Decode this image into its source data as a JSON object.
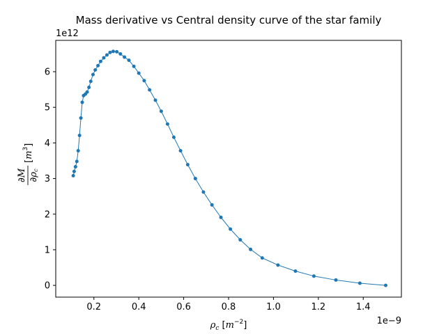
{
  "chart_data": {
    "type": "line",
    "title": "Mass derivative vs Central density curve of the star family",
    "xlabel": {
      "symbol": "ρ",
      "sub": "c",
      "unit_open": " [",
      "unit_base": "m",
      "unit_exp": "−2",
      "unit_close": "]"
    },
    "ylabel": {
      "partial": "∂",
      "numerator": "M",
      "den_symbol": "ρ",
      "den_sub": "c",
      "unit_open": " [",
      "unit_base": "m",
      "unit_exp": "3",
      "unit_close": "]"
    },
    "x_offset_text": "1e−9",
    "y_offset_text": "1e12",
    "x_scale": 1e-09,
    "y_scale": 1000000000000.0,
    "xlim": [
      0.03,
      1.57
    ],
    "ylim": [
      -0.33,
      6.88
    ],
    "x_ticks": [
      0.2,
      0.4,
      0.6,
      0.8,
      1.0,
      1.2,
      1.4
    ],
    "x_tick_labels": [
      "0.2",
      "0.4",
      "0.6",
      "0.8",
      "1.0",
      "1.2",
      "1.4"
    ],
    "y_ticks": [
      0,
      1,
      2,
      3,
      4,
      5,
      6
    ],
    "y_tick_labels": [
      "0",
      "1",
      "2",
      "3",
      "4",
      "5",
      "6"
    ],
    "grid": false,
    "series_color": "#1f77b4",
    "x": [
      0.108,
      0.112,
      0.118,
      0.124,
      0.13,
      0.136,
      0.142,
      0.148,
      0.154,
      0.162,
      0.17,
      0.178,
      0.186,
      0.196,
      0.206,
      0.218,
      0.23,
      0.244,
      0.258,
      0.272,
      0.286,
      0.302,
      0.318,
      0.336,
      0.356,
      0.378,
      0.4,
      0.424,
      0.448,
      0.474,
      0.5,
      0.528,
      0.556,
      0.586,
      0.618,
      0.652,
      0.688,
      0.726,
      0.766,
      0.808,
      0.852,
      0.898,
      0.95,
      1.02,
      1.098,
      1.18,
      1.278,
      1.385,
      1.5
    ],
    "y": [
      3.08,
      3.2,
      3.33,
      3.48,
      3.78,
      4.21,
      4.7,
      5.14,
      5.33,
      5.37,
      5.43,
      5.56,
      5.73,
      5.92,
      6.05,
      6.17,
      6.29,
      6.39,
      6.47,
      6.54,
      6.57,
      6.56,
      6.5,
      6.41,
      6.32,
      6.15,
      5.96,
      5.75,
      5.49,
      5.2,
      4.89,
      4.53,
      4.16,
      3.78,
      3.39,
      3.0,
      2.62,
      2.26,
      1.91,
      1.58,
      1.28,
      1.01,
      0.77,
      0.57,
      0.4,
      0.26,
      0.15,
      0.06,
      0.0
    ]
  }
}
